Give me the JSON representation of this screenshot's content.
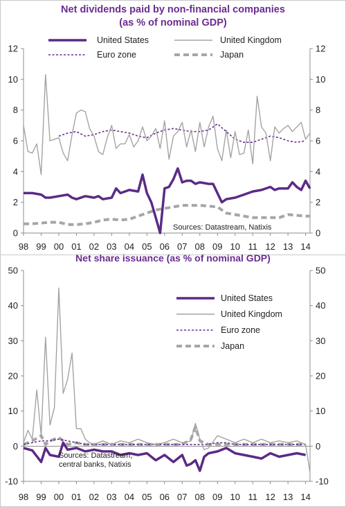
{
  "chart_data": [
    {
      "type": "line",
      "title": "Net dividends paid by non-financial companies",
      "subtitle": "(as % of nominal GDP)",
      "xlabel": "",
      "ylabel": "",
      "ylim": [
        0,
        12
      ],
      "y_ticks": [
        "0",
        "2",
        "4",
        "6",
        "8",
        "10",
        "12"
      ],
      "x_ticks": [
        "98",
        "99",
        "00",
        "01",
        "02",
        "03",
        "04",
        "05",
        "06",
        "07",
        "08",
        "09",
        "10",
        "11",
        "12",
        "13",
        "14"
      ],
      "x_range": [
        1998,
        2014.25
      ],
      "grid": false,
      "legend_position": "top",
      "source": "Sources: Datastream, Natixis",
      "series": [
        {
          "name": "United States",
          "color": "#5b2a86",
          "style": "solid-thick",
          "x": [
            1998,
            1998.5,
            1999,
            1999.25,
            1999.5,
            2000,
            2000.5,
            2000.75,
            2001,
            2001.5,
            2002,
            2002.25,
            2002.5,
            2003,
            2003.25,
            2003.5,
            2004,
            2004.5,
            2004.75,
            2005,
            2005.25,
            2005.5,
            2005.75,
            2006,
            2006.25,
            2006.5,
            2006.75,
            2007,
            2007.25,
            2007.5,
            2007.75,
            2008,
            2008.5,
            2008.75,
            2009,
            2009.25,
            2009.5,
            2010,
            2010.5,
            2011,
            2011.5,
            2012,
            2012.25,
            2012.5,
            2013,
            2013.25,
            2013.5,
            2013.75,
            2014,
            2014.25
          ],
          "y": [
            2.6,
            2.6,
            2.5,
            2.3,
            2.3,
            2.4,
            2.5,
            2.3,
            2.2,
            2.4,
            2.3,
            2.4,
            2.2,
            2.3,
            2.9,
            2.6,
            2.8,
            2.7,
            3.8,
            2.6,
            2.0,
            1.0,
            0.0,
            2.9,
            3.0,
            3.5,
            4.2,
            3.3,
            3.4,
            3.4,
            3.2,
            3.3,
            3.2,
            3.2,
            2.6,
            2.0,
            2.2,
            2.3,
            2.5,
            2.7,
            2.8,
            3.0,
            2.8,
            2.9,
            2.9,
            3.3,
            3.0,
            2.8,
            3.4,
            2.9
          ]
        },
        {
          "name": "United Kingdom",
          "color": "#a3a3a3",
          "style": "solid-thin",
          "x": [
            1998,
            1998.25,
            1998.5,
            1998.75,
            1999,
            1999.25,
            1999.5,
            1999.75,
            2000,
            2000.25,
            2000.5,
            2000.75,
            2001,
            2001.25,
            2001.5,
            2001.75,
            2002,
            2002.25,
            2002.5,
            2002.75,
            2003,
            2003.25,
            2003.5,
            2003.75,
            2004,
            2004.25,
            2004.5,
            2004.75,
            2005,
            2005.25,
            2005.5,
            2005.75,
            2006,
            2006.25,
            2006.5,
            2006.75,
            2007,
            2007.25,
            2007.5,
            2007.75,
            2008,
            2008.25,
            2008.5,
            2008.75,
            2009,
            2009.25,
            2009.5,
            2009.75,
            2010,
            2010.25,
            2010.5,
            2010.75,
            2011,
            2011.25,
            2011.5,
            2011.75,
            2012,
            2012.25,
            2012.5,
            2012.75,
            2013,
            2013.25,
            2013.5,
            2013.75,
            2014,
            2014.25
          ],
          "y": [
            7.0,
            5.3,
            5.2,
            5.8,
            3.8,
            10.3,
            6.0,
            6.1,
            6.2,
            5.2,
            4.7,
            6.4,
            7.8,
            8.0,
            7.9,
            6.8,
            6.3,
            5.3,
            5.1,
            6.2,
            7.0,
            5.5,
            5.8,
            5.8,
            6.4,
            5.6,
            6.0,
            6.9,
            6.0,
            6.3,
            6.8,
            5.5,
            7.3,
            4.8,
            6.3,
            6.6,
            7.2,
            5.6,
            6.7,
            5.3,
            7.2,
            5.6,
            6.9,
            7.6,
            5.5,
            4.7,
            6.7,
            4.9,
            6.6,
            5.1,
            5.2,
            6.7,
            4.5,
            8.9,
            6.9,
            6.5,
            4.7,
            6.9,
            6.5,
            6.8,
            7.0,
            6.6,
            6.9,
            7.2,
            6.1,
            6.5
          ]
        },
        {
          "name": "Euro zone",
          "color": "#6a2c91",
          "style": "dotted",
          "x": [
            2000,
            2000.5,
            2001,
            2001.5,
            2002,
            2002.5,
            2003,
            2003.5,
            2004,
            2004.5,
            2005,
            2005.5,
            2006,
            2006.5,
            2007,
            2007.5,
            2008,
            2008.5,
            2009,
            2009.5,
            2010,
            2010.5,
            2011,
            2011.5,
            2012,
            2012.5,
            2013,
            2013.5,
            2014
          ],
          "y": [
            6.3,
            6.5,
            6.6,
            6.3,
            6.4,
            6.6,
            6.7,
            6.6,
            6.5,
            6.3,
            6.2,
            6.5,
            6.7,
            6.8,
            6.7,
            6.6,
            6.6,
            6.7,
            7.1,
            6.6,
            6.1,
            5.9,
            5.9,
            6.1,
            6.3,
            6.2,
            6.0,
            5.9,
            6.0
          ]
        },
        {
          "name": "Japan",
          "color": "#a6a6a6",
          "style": "dashed-thick",
          "x": [
            1998,
            1998.5,
            1999,
            1999.5,
            2000,
            2000.5,
            2001,
            2001.5,
            2002,
            2002.5,
            2003,
            2003.5,
            2004,
            2004.5,
            2005,
            2005.5,
            2006,
            2006.5,
            2007,
            2007.5,
            2008,
            2008.5,
            2009,
            2009.5,
            2010,
            2010.5,
            2011,
            2011.5,
            2012,
            2012.5,
            2013,
            2013.5,
            2014,
            2014.25
          ],
          "y": [
            0.6,
            0.6,
            0.65,
            0.7,
            0.7,
            0.55,
            0.55,
            0.6,
            0.7,
            0.85,
            0.9,
            0.85,
            0.9,
            1.1,
            1.3,
            1.5,
            1.6,
            1.7,
            1.8,
            1.8,
            1.8,
            1.75,
            1.7,
            1.3,
            1.2,
            1.1,
            1.0,
            1.0,
            1.0,
            1.0,
            1.2,
            1.15,
            1.1,
            1.1
          ]
        }
      ]
    },
    {
      "type": "line",
      "title": "Net share issuance (as % of nominal GDP)",
      "xlabel": "",
      "ylabel": "",
      "ylim": [
        -10,
        50
      ],
      "y_ticks": [
        "-10",
        "0",
        "10",
        "20",
        "30",
        "40",
        "50"
      ],
      "x_ticks": [
        "98",
        "99",
        "00",
        "01",
        "02",
        "03",
        "04",
        "05",
        "06",
        "07",
        "08",
        "09",
        "10",
        "11",
        "12",
        "13",
        "14"
      ],
      "x_range": [
        1998,
        2014.25
      ],
      "grid": false,
      "legend_position": "top-right",
      "source": "Sources: Datastream,\ncentral banks, Natixis",
      "series": [
        {
          "name": "United States",
          "color": "#5b2a86",
          "style": "solid-thick",
          "x": [
            1998,
            1998.5,
            1999,
            1999.25,
            1999.5,
            2000,
            2000.25,
            2000.5,
            2001,
            2001.5,
            2002,
            2002.5,
            2003,
            2003.5,
            2004,
            2004.5,
            2005,
            2005.5,
            2006,
            2006.5,
            2007,
            2007.25,
            2007.5,
            2007.75,
            2008,
            2008.25,
            2008.5,
            2009,
            2009.5,
            2010,
            2010.5,
            2011,
            2011.5,
            2012,
            2012.5,
            2013,
            2013.5,
            2014
          ],
          "y": [
            -0.5,
            -1.2,
            -4.5,
            -0.5,
            -2.5,
            -3.0,
            1.0,
            -1.0,
            -0.5,
            -1.5,
            -1.0,
            -1.5,
            -1.5,
            -2.5,
            -2.0,
            -2.5,
            -2.0,
            -4.0,
            -2.5,
            -4.5,
            -2.5,
            -5.5,
            -5.0,
            -4.0,
            -7.0,
            -3.0,
            -2.0,
            -1.5,
            -0.5,
            -2.0,
            -2.5,
            -3.0,
            -3.5,
            -2.0,
            -3.0,
            -2.5,
            -2.0,
            -2.5
          ]
        },
        {
          "name": "United Kingdom",
          "color": "#a3a3a3",
          "style": "solid-thin",
          "x": [
            1998,
            1998.25,
            1998.5,
            1998.75,
            1999,
            1999.25,
            1999.5,
            1999.75,
            2000,
            2000.25,
            2000.5,
            2000.75,
            2001,
            2001.25,
            2001.5,
            2001.75,
            2002,
            2002.5,
            2003,
            2003.5,
            2004,
            2004.5,
            2005,
            2005.5,
            2006,
            2006.5,
            2007,
            2007.5,
            2007.75,
            2008,
            2008.25,
            2008.5,
            2009,
            2009.5,
            2010,
            2010.5,
            2011,
            2011.5,
            2012,
            2012.5,
            2013,
            2013.5,
            2014,
            2014.25
          ],
          "y": [
            1.0,
            4.5,
            2.0,
            16.0,
            3.0,
            31.0,
            6.0,
            11.0,
            45.0,
            15.0,
            19.0,
            26.5,
            5.0,
            5.0,
            2.0,
            1.0,
            0.5,
            1.5,
            0.5,
            1.5,
            1.0,
            2.0,
            1.0,
            0.5,
            1.0,
            2.0,
            1.0,
            1.5,
            6.5,
            2.0,
            -1.0,
            -0.5,
            3.0,
            2.0,
            1.0,
            2.0,
            1.0,
            2.0,
            1.0,
            1.5,
            1.0,
            1.5,
            0.5,
            -7.5
          ]
        },
        {
          "name": "Euro zone",
          "color": "#6a2c91",
          "style": "dotted",
          "x": [
            1998,
            1998.5,
            1999,
            1999.5,
            2000,
            2000.5,
            2001,
            2001.5,
            2002,
            2002.5,
            2003,
            2003.5,
            2004,
            2004.5,
            2005,
            2005.5,
            2006,
            2006.5,
            2007,
            2007.5,
            2008,
            2008.5,
            2009,
            2009.5,
            2010,
            2010.5,
            2011,
            2011.5,
            2012,
            2012.5,
            2013,
            2013.5,
            2014
          ],
          "y": [
            0.5,
            1.0,
            1.5,
            1.5,
            2.0,
            1.5,
            1.0,
            0.5,
            0.5,
            0.5,
            0.5,
            0.5,
            0.5,
            0.5,
            0.5,
            0.5,
            0.5,
            0.5,
            0.5,
            0.5,
            0.5,
            0.5,
            1.0,
            1.0,
            0.5,
            0.5,
            0.5,
            0.5,
            0.5,
            0.5,
            0.5,
            0.5,
            0.5
          ]
        },
        {
          "name": "Japan",
          "color": "#a6a6a6",
          "style": "dashed-thick",
          "x": [
            1998,
            1998.5,
            1999,
            1999.25,
            1999.5,
            2000,
            2000.5,
            2001,
            2001.5,
            2002,
            2002.5,
            2003,
            2003.5,
            2004,
            2004.5,
            2005,
            2005.5,
            2006,
            2006.5,
            2007,
            2007.5,
            2007.75,
            2008,
            2008.5,
            2009,
            2009.5,
            2010,
            2010.5,
            2011,
            2011.5,
            2012,
            2012.5,
            2013,
            2013.5,
            2014
          ],
          "y": [
            0.5,
            1.5,
            3.0,
            0.5,
            1.5,
            2.5,
            0.5,
            1.0,
            0.5,
            0.5,
            0.5,
            0.5,
            0.5,
            0.5,
            0.5,
            0.5,
            0.5,
            0.5,
            0.5,
            0.5,
            2.0,
            5.5,
            1.5,
            0.5,
            0.5,
            0.5,
            0.5,
            0.5,
            0.5,
            0.5,
            0.5,
            0.5,
            0.5,
            0.5,
            0.5
          ]
        }
      ]
    }
  ]
}
